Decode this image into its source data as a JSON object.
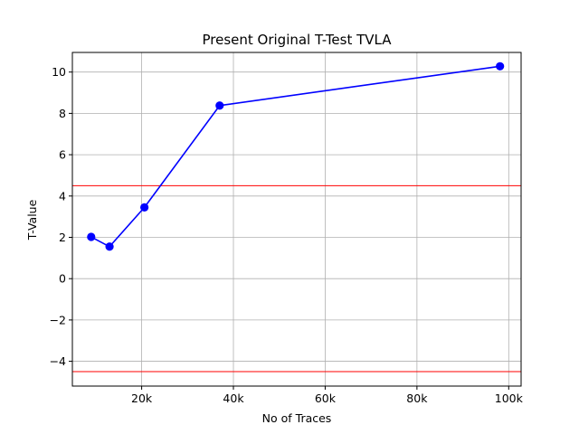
{
  "chart_data": {
    "type": "line",
    "title": "Present Original T-Test TVLA",
    "xlabel": "No of Traces",
    "ylabel": "T-Value",
    "xlim": [
      4900,
      102700
    ],
    "ylim": [
      -5.2,
      10.95
    ],
    "grid": true,
    "x_ticks": [
      {
        "value": 20000,
        "label": "20k"
      },
      {
        "value": 40000,
        "label": "40k"
      },
      {
        "value": 60000,
        "label": "60k"
      },
      {
        "value": 80000,
        "label": "80k"
      },
      {
        "value": 100000,
        "label": "100k"
      }
    ],
    "y_ticks": [
      {
        "value": -4,
        "label": "−4"
      },
      {
        "value": -2,
        "label": "−2"
      },
      {
        "value": 0,
        "label": "0"
      },
      {
        "value": 2,
        "label": "2"
      },
      {
        "value": 4,
        "label": "4"
      },
      {
        "value": 6,
        "label": "6"
      },
      {
        "value": 8,
        "label": "8"
      },
      {
        "value": 10,
        "label": "10"
      }
    ],
    "series": [
      {
        "color": "#0000ff",
        "marker": "circle",
        "x": [
          9000,
          13000,
          20600,
          37000,
          98100
        ],
        "y": [
          2.02,
          1.55,
          3.45,
          8.38,
          10.28
        ]
      }
    ],
    "thresholds": [
      {
        "value": 4.5,
        "color": "#ff0000"
      },
      {
        "value": -4.5,
        "color": "#ff0000"
      }
    ]
  }
}
